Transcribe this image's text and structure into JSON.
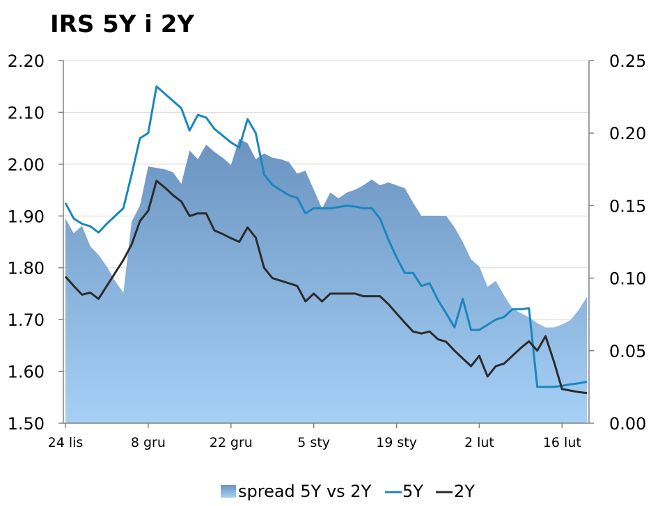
{
  "chart_data": {
    "type": "line",
    "title": "IRS 5Y i 2Y",
    "xlabel": "",
    "ylabel": "",
    "y_left": {
      "min": 1.5,
      "max": 2.2,
      "ticks": [
        "1.50",
        "1.60",
        "1.70",
        "1.80",
        "1.90",
        "2.00",
        "2.10",
        "2.20"
      ]
    },
    "y_right": {
      "min": 0,
      "max": 0.25,
      "ticks": [
        "0.00",
        "0.05",
        "0.10",
        "0.15",
        "0.20",
        "0.25"
      ]
    },
    "x_ticks": [
      {
        "label": "24 lis",
        "index": 0
      },
      {
        "label": "8 gru",
        "index": 10
      },
      {
        "label": "22 gru",
        "index": 20
      },
      {
        "label": "5 sty",
        "index": 30
      },
      {
        "label": "19 sty",
        "index": 40
      },
      {
        "label": "2 lut",
        "index": 50
      },
      {
        "label": "16 lut",
        "index": 60
      }
    ],
    "x_count": 64,
    "legend": {
      "position": "bottom",
      "items": [
        "spread 5Y vs 2Y",
        "5Y",
        "2Y"
      ]
    },
    "colors": {
      "spread_dark": "#6a93c0",
      "spread_light": "#a6d0f6",
      "five_y": "#1a86bf",
      "two_y": "#2b2b2b"
    },
    "series": [
      {
        "name": "spread 5Y vs 2Y",
        "axis": "right",
        "type": "area",
        "values": [
          0.141,
          0.131,
          0.136,
          0.122,
          0.116,
          0.108,
          0.098,
          0.09,
          0.139,
          0.15,
          0.177,
          0.176,
          0.175,
          0.173,
          0.165,
          0.188,
          0.182,
          0.192,
          0.187,
          0.183,
          0.178,
          0.196,
          0.193,
          0.182,
          0.186,
          0.183,
          0.182,
          0.18,
          0.172,
          0.174,
          0.161,
          0.148,
          0.159,
          0.155,
          0.159,
          0.161,
          0.164,
          0.168,
          0.164,
          0.166,
          0.164,
          0.162,
          0.152,
          0.143,
          0.143,
          0.143,
          0.143,
          0.135,
          0.125,
          0.113,
          0.108,
          0.094,
          0.098,
          0.088,
          0.079,
          0.076,
          0.073,
          0.069,
          0.066,
          0.066,
          0.068,
          0.071,
          0.078,
          0.087
        ]
      },
      {
        "name": "5Y",
        "axis": "left",
        "type": "line",
        "values": [
          1.925,
          1.895,
          1.885,
          1.88,
          1.868,
          1.885,
          1.9,
          1.915,
          1.98,
          2.05,
          2.06,
          2.15,
          2.136,
          2.122,
          2.108,
          2.065,
          2.095,
          2.09,
          2.068,
          2.055,
          2.042,
          2.032,
          2.087,
          2.06,
          1.98,
          1.96,
          1.95,
          1.94,
          1.935,
          1.905,
          1.915,
          1.915,
          1.915,
          1.917,
          1.92,
          1.918,
          1.915,
          1.915,
          1.895,
          1.855,
          1.82,
          1.79,
          1.79,
          1.765,
          1.77,
          1.738,
          1.712,
          1.685,
          1.74,
          1.68,
          1.68,
          1.69,
          1.7,
          1.705,
          1.72,
          1.72,
          1.722,
          1.57,
          1.57,
          1.57,
          1.572,
          1.575,
          1.577,
          1.58
        ]
      },
      {
        "name": "2Y",
        "axis": "left",
        "type": "line",
        "values": [
          1.783,
          1.765,
          1.748,
          1.752,
          1.74,
          1.765,
          1.79,
          1.815,
          1.845,
          1.89,
          1.91,
          1.968,
          1.955,
          1.94,
          1.928,
          1.9,
          1.905,
          1.905,
          1.872,
          1.865,
          1.857,
          1.85,
          1.878,
          1.858,
          1.8,
          1.78,
          1.775,
          1.77,
          1.765,
          1.735,
          1.75,
          1.735,
          1.75,
          1.75,
          1.75,
          1.75,
          1.745,
          1.745,
          1.745,
          1.73,
          1.712,
          1.694,
          1.677,
          1.673,
          1.677,
          1.662,
          1.657,
          1.64,
          1.625,
          1.61,
          1.63,
          1.59,
          1.61,
          1.615,
          1.63,
          1.645,
          1.658,
          1.64,
          1.668,
          1.62,
          1.566,
          1.563,
          1.56,
          1.558
        ]
      }
    ]
  }
}
